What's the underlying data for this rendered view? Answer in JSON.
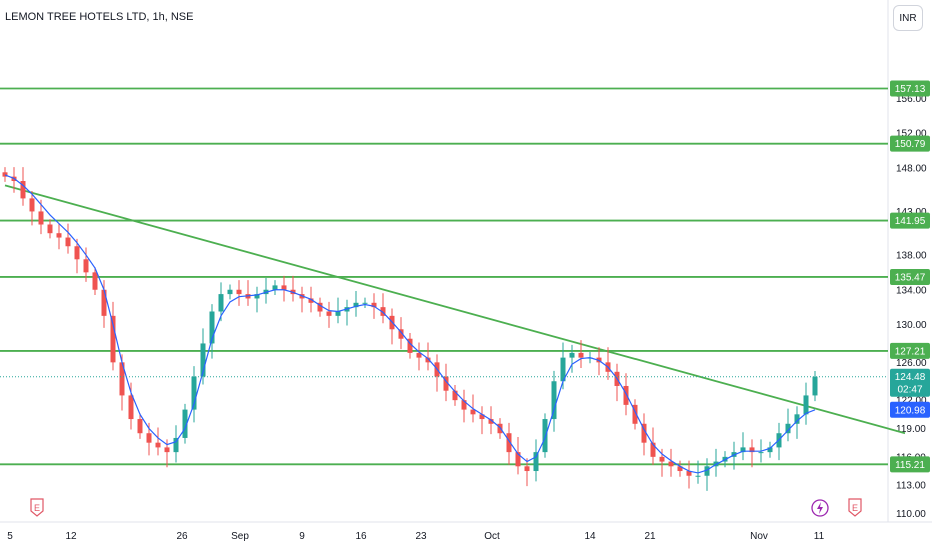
{
  "header": {
    "title": "LEMON TREE HOTELS LTD, 1h, NSE",
    "currency_button": "INR"
  },
  "colors": {
    "up": "#26a69a",
    "down": "#ef5350",
    "ma": "#2962ff",
    "level": "#4caf50",
    "current_tag": "#26a69a",
    "ma_tag": "#2962ff",
    "event": "#e05766",
    "flash": "#9c27b0"
  },
  "chart_data": {
    "type": "candlestick",
    "y_range": [
      109,
      159
    ],
    "y_ticks": [
      "110.00",
      "113.00",
      "116.00",
      "119.00",
      "122.00",
      "126.00",
      "130.00",
      "134.00",
      "138.00",
      "143.00",
      "148.00",
      "152.00",
      "156.00"
    ],
    "x_ticks": [
      "5",
      "12",
      "26",
      "Sep",
      "9",
      "16",
      "23",
      "Oct",
      "14",
      "21",
      "Nov",
      "11"
    ],
    "horizontal_levels": [
      "157.13",
      "150.79",
      "141.95",
      "135.47",
      "127.21",
      "115.21"
    ],
    "trendline": {
      "from": {
        "bar": 0,
        "price": 146
      },
      "to": {
        "bar": 100,
        "price": 118.5
      }
    },
    "current_price": "124.48",
    "countdown": "02:47",
    "ma_value": "120.98",
    "ma_label": "",
    "closes": [
      147.0,
      146.5,
      144.5,
      143.0,
      141.5,
      140.5,
      140.0,
      139.0,
      137.5,
      136.0,
      134.0,
      131.0,
      126.0,
      122.5,
      120.0,
      118.5,
      117.5,
      117.0,
      116.5,
      118.0,
      121.0,
      124.5,
      128.0,
      131.5,
      133.5,
      134.0,
      133.5,
      133.0,
      133.5,
      134.0,
      134.5,
      134.0,
      133.5,
      133.0,
      132.5,
      131.5,
      131.0,
      131.5,
      132.0,
      132.5,
      132.5,
      132.0,
      131.0,
      129.5,
      128.5,
      127.0,
      126.5,
      126.0,
      124.5,
      123.0,
      122.0,
      121.0,
      120.5,
      120.0,
      119.5,
      118.5,
      116.5,
      115.0,
      114.5,
      116.5,
      120.0,
      124.0,
      126.5,
      127.0,
      126.5,
      126.5,
      126.0,
      125.0,
      123.5,
      121.5,
      119.5,
      117.5,
      116.0,
      115.5,
      115.0,
      114.5,
      114.0,
      114.0,
      115.0,
      115.5,
      116.0,
      116.5,
      117.0,
      116.5,
      116.5,
      117.0,
      118.5,
      119.5,
      120.5,
      122.5,
      124.48
    ],
    "ma_values": [
      147.2,
      146.8,
      146.0,
      145.0,
      143.8,
      142.6,
      141.6,
      140.6,
      139.4,
      138.0,
      136.5,
      134.0,
      130.0,
      126.0,
      122.8,
      120.5,
      119.0,
      118.0,
      117.3,
      117.6,
      119.0,
      121.6,
      125.0,
      128.5,
      131.0,
      132.6,
      133.2,
      133.3,
      133.4,
      133.7,
      134.0,
      134.0,
      133.7,
      133.3,
      132.9,
      132.2,
      131.6,
      131.5,
      131.8,
      132.1,
      132.3,
      132.1,
      131.4,
      130.3,
      129.2,
      128.0,
      127.1,
      126.4,
      125.3,
      124.0,
      122.9,
      121.9,
      121.1,
      120.5,
      119.9,
      119.1,
      117.7,
      116.3,
      115.5,
      116.0,
      118.0,
      121.0,
      124.0,
      125.8,
      126.4,
      126.5,
      126.2,
      125.5,
      124.3,
      122.7,
      120.8,
      118.9,
      117.3,
      116.3,
      115.6,
      115.0,
      114.5,
      114.3,
      114.6,
      115.2,
      115.7,
      116.2,
      116.6,
      116.6,
      116.6,
      116.9,
      117.8,
      118.8,
      119.8,
      120.6,
      120.98
    ]
  },
  "events": {
    "earnings_left": "E",
    "earnings_right": "E",
    "flash_icon": "lightning-icon"
  }
}
